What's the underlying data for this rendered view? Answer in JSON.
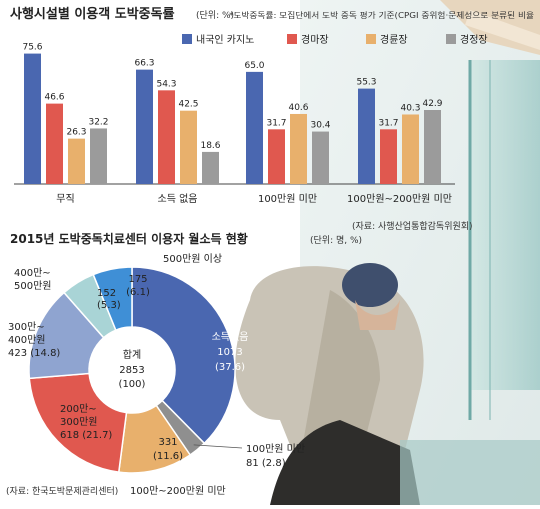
{
  "chart_data": [
    {
      "type": "bar",
      "title": "사행시설별 이용객 도박중독률",
      "subtitle": "(단위: %)",
      "note": "*도박중독률: 모집단에서 도박 중독 평가 기준(CPGI 중위험·문제성으로 분류된 비율",
      "source": "(자료: 사행산업통합감독위원회)",
      "categories": [
        "무직",
        "소득 없음",
        "100만원 미만",
        "100만원~200만원 미만"
      ],
      "series": [
        {
          "name": "내국인 카지노",
          "color": "#4a67b0",
          "values": [
            75.6,
            66.3,
            65.0,
            55.3
          ]
        },
        {
          "name": "경마장",
          "color": "#e0584f",
          "values": [
            46.6,
            54.3,
            31.7,
            31.7
          ]
        },
        {
          "name": "경륜장",
          "color": "#e8b06c",
          "values": [
            26.3,
            42.5,
            40.6,
            40.3
          ]
        },
        {
          "name": "경정장",
          "color": "#9b9b9b",
          "values": [
            32.2,
            18.6,
            30.4,
            42.9
          ]
        }
      ],
      "value_labels": [
        [
          "75.6",
          "46.6",
          "26.3",
          "32.2"
        ],
        [
          "66.3",
          "54.3",
          "42.5",
          "18.6"
        ],
        [
          "65.0",
          "31.7",
          "40.6",
          "30.4"
        ],
        [
          "55.3",
          "31.7",
          "40.3",
          "42.9"
        ]
      ],
      "ylim": [
        0,
        80
      ],
      "legend_position": "top-right",
      "grid": false
    },
    {
      "type": "pie",
      "title": "2015년 도박중독치료센터 이용자 월소득 현황",
      "subtitle": "(단위: 명, %)",
      "source": "(자료: 한국도박문제관리센터)",
      "center_label": "합계",
      "center_value": "2853",
      "center_pct": "(100)",
      "slices": [
        {
          "label": "소득없음",
          "value": 1073,
          "value_text": "1073",
          "pct_text": "(37.6)",
          "color": "#4a67b0"
        },
        {
          "label": "100만원 미만",
          "value": 81,
          "value_text": "81",
          "pct_text": "(2.8)",
          "color": "#8f8f8f"
        },
        {
          "label": "100만~200만원 미만",
          "value": 331,
          "value_text": "331",
          "pct_text": "(11.6)",
          "color": "#e8b06c"
        },
        {
          "label": "200만~ 300만원 미만",
          "value": 618,
          "value_text": "618",
          "pct_text": "(21.7)",
          "color": "#e0584f"
        },
        {
          "label": "300만~ 400만원 미만",
          "value": 423,
          "value_text": "423",
          "pct_text": "(14.8)",
          "color": "#8fa4d0"
        },
        {
          "label": "400만~ 500만원 미만",
          "value": 152,
          "value_text": "152",
          "pct_text": "(5.3)",
          "color": "#a9d4d6"
        },
        {
          "label": "500만원 이상",
          "value": 175,
          "value_text": "175",
          "pct_text": "(6.1)",
          "color": "#3f8fd6"
        }
      ]
    }
  ]
}
